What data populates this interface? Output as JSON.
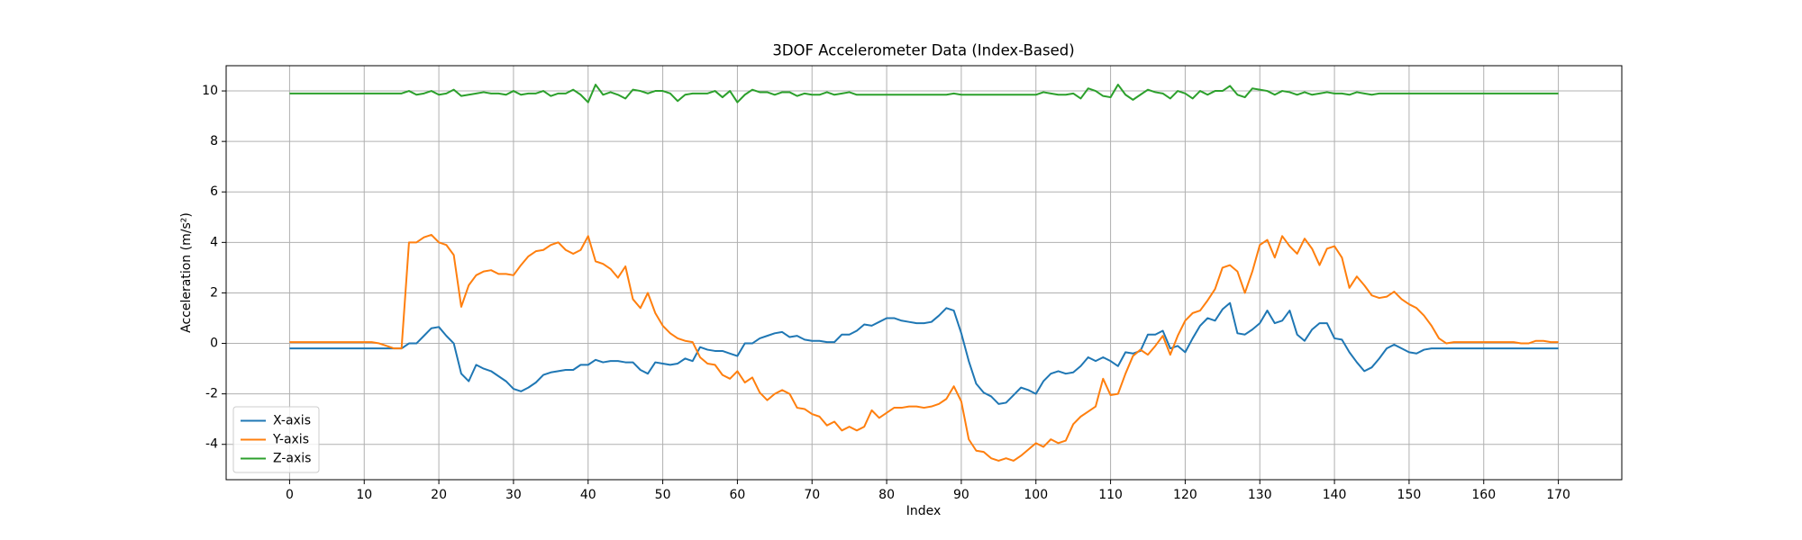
{
  "chart_data": {
    "type": "line",
    "title": "3DOF Accelerometer Data (Index-Based)",
    "x_label": "Index",
    "y_label": "Acceleration (m/s²)",
    "x": [
      0,
      1,
      2,
      3,
      4,
      5,
      6,
      7,
      8,
      9,
      10,
      11,
      12,
      13,
      14,
      15,
      16,
      17,
      18,
      19,
      20,
      21,
      22,
      23,
      24,
      25,
      26,
      27,
      28,
      29,
      30,
      31,
      32,
      33,
      34,
      35,
      36,
      37,
      38,
      39,
      40,
      41,
      42,
      43,
      44,
      45,
      46,
      47,
      48,
      49,
      50,
      51,
      52,
      53,
      54,
      55,
      56,
      57,
      58,
      59,
      60,
      61,
      62,
      63,
      64,
      65,
      66,
      67,
      68,
      69,
      70,
      71,
      72,
      73,
      74,
      75,
      76,
      77,
      78,
      79,
      80,
      81,
      82,
      83,
      84,
      85,
      86,
      87,
      88,
      89,
      90,
      91,
      92,
      93,
      94,
      95,
      96,
      97,
      98,
      99,
      100,
      101,
      102,
      103,
      104,
      105,
      106,
      107,
      108,
      109,
      110,
      111,
      112,
      113,
      114,
      115,
      116,
      117,
      118,
      119,
      120,
      121,
      122,
      123,
      124,
      125,
      126,
      127,
      128,
      129,
      130,
      131,
      132,
      133,
      134,
      135,
      136,
      137,
      138,
      139,
      140,
      141,
      142,
      143,
      144,
      145,
      146,
      147,
      148,
      149,
      150,
      151,
      152,
      153,
      154,
      155,
      156,
      157,
      158,
      159,
      160,
      161,
      162,
      163,
      164,
      165,
      166,
      167,
      168,
      169,
      170
    ],
    "series": [
      {
        "name": "X-axis",
        "color": "#1f77b4",
        "values": [
          -0.2,
          -0.2,
          -0.2,
          -0.2,
          -0.2,
          -0.2,
          -0.2,
          -0.2,
          -0.2,
          -0.2,
          -0.2,
          -0.2,
          -0.2,
          -0.2,
          -0.2,
          -0.2,
          0.0,
          0.0,
          0.3,
          0.6,
          0.65,
          0.3,
          0.0,
          -1.2,
          -1.5,
          -0.85,
          -1.0,
          -1.1,
          -1.3,
          -1.5,
          -1.8,
          -1.9,
          -1.75,
          -1.55,
          -1.25,
          -1.15,
          -1.1,
          -1.05,
          -1.05,
          -0.85,
          -0.85,
          -0.65,
          -0.75,
          -0.7,
          -0.7,
          -0.75,
          -0.75,
          -1.05,
          -1.2,
          -0.75,
          -0.8,
          -0.85,
          -0.8,
          -0.6,
          -0.7,
          -0.15,
          -0.25,
          -0.3,
          -0.3,
          -0.4,
          -0.5,
          0.0,
          0.0,
          0.2,
          0.3,
          0.4,
          0.45,
          0.25,
          0.3,
          0.15,
          0.1,
          0.1,
          0.05,
          0.05,
          0.35,
          0.35,
          0.5,
          0.75,
          0.7,
          0.85,
          1.0,
          1.0,
          0.9,
          0.85,
          0.8,
          0.8,
          0.85,
          1.1,
          1.4,
          1.3,
          0.4,
          -0.7,
          -1.6,
          -1.95,
          -2.1,
          -2.4,
          -2.35,
          -2.05,
          -1.75,
          -1.85,
          -2.0,
          -1.5,
          -1.2,
          -1.1,
          -1.2,
          -1.15,
          -0.9,
          -0.55,
          -0.7,
          -0.55,
          -0.7,
          -0.9,
          -0.35,
          -0.4,
          -0.3,
          0.35,
          0.35,
          0.5,
          -0.2,
          -0.1,
          -0.35,
          0.2,
          0.7,
          1.0,
          0.9,
          1.35,
          1.6,
          0.4,
          0.35,
          0.55,
          0.8,
          1.3,
          0.8,
          0.9,
          1.3,
          0.35,
          0.1,
          0.55,
          0.8,
          0.8,
          0.2,
          0.15,
          -0.35,
          -0.75,
          -1.1,
          -0.95,
          -0.6,
          -0.2,
          -0.05,
          -0.2,
          -0.35,
          -0.4,
          -0.25,
          -0.2,
          -0.2,
          -0.2,
          -0.2,
          -0.2,
          -0.2,
          -0.2,
          -0.2,
          -0.2,
          -0.2,
          -0.2,
          -0.2,
          -0.2,
          -0.2,
          -0.2,
          -0.2,
          -0.2,
          -0.2
        ]
      },
      {
        "name": "Y-axis",
        "color": "#ff7f0e",
        "values": [
          0.05,
          0.05,
          0.05,
          0.05,
          0.05,
          0.05,
          0.05,
          0.05,
          0.05,
          0.05,
          0.05,
          0.05,
          0.0,
          -0.1,
          -0.2,
          -0.2,
          4.0,
          4.0,
          4.2,
          4.3,
          4.0,
          3.9,
          3.5,
          1.45,
          2.3,
          2.7,
          2.85,
          2.9,
          2.75,
          2.75,
          2.7,
          3.1,
          3.45,
          3.65,
          3.7,
          3.9,
          4.0,
          3.7,
          3.55,
          3.7,
          4.25,
          3.25,
          3.15,
          2.95,
          2.6,
          3.05,
          1.75,
          1.4,
          2.0,
          1.2,
          0.7,
          0.4,
          0.2,
          0.1,
          0.05,
          -0.55,
          -0.8,
          -0.85,
          -1.25,
          -1.4,
          -1.1,
          -1.55,
          -1.35,
          -1.95,
          -2.25,
          -2.0,
          -1.85,
          -2.0,
          -2.55,
          -2.6,
          -2.8,
          -2.9,
          -3.25,
          -3.1,
          -3.45,
          -3.3,
          -3.45,
          -3.3,
          -2.65,
          -2.95,
          -2.75,
          -2.55,
          -2.55,
          -2.5,
          -2.5,
          -2.55,
          -2.5,
          -2.4,
          -2.2,
          -1.7,
          -2.3,
          -3.8,
          -4.25,
          -4.3,
          -4.55,
          -4.65,
          -4.55,
          -4.65,
          -4.45,
          -4.2,
          -3.95,
          -4.1,
          -3.8,
          -3.95,
          -3.85,
          -3.2,
          -2.9,
          -2.7,
          -2.5,
          -1.4,
          -2.05,
          -2.0,
          -1.2,
          -0.5,
          -0.25,
          -0.45,
          -0.1,
          0.3,
          -0.45,
          0.3,
          0.9,
          1.2,
          1.3,
          1.7,
          2.15,
          3.0,
          3.1,
          2.85,
          2.0,
          2.85,
          3.9,
          4.1,
          3.4,
          4.25,
          3.85,
          3.55,
          4.15,
          3.75,
          3.1,
          3.75,
          3.85,
          3.4,
          2.2,
          2.65,
          2.3,
          1.9,
          1.8,
          1.85,
          2.05,
          1.75,
          1.55,
          1.4,
          1.1,
          0.7,
          0.2,
          0.0,
          0.05,
          0.05,
          0.05,
          0.05,
          0.05,
          0.05,
          0.05,
          0.05,
          0.05,
          0.0,
          0.0,
          0.1,
          0.1,
          0.05,
          0.05
        ]
      },
      {
        "name": "Z-axis",
        "color": "#2ca02c",
        "values": [
          9.9,
          9.9,
          9.9,
          9.9,
          9.9,
          9.9,
          9.9,
          9.9,
          9.9,
          9.9,
          9.9,
          9.9,
          9.9,
          9.9,
          9.9,
          9.9,
          10.0,
          9.85,
          9.9,
          10.0,
          9.85,
          9.9,
          10.05,
          9.8,
          9.85,
          9.9,
          9.95,
          9.9,
          9.9,
          9.85,
          10.0,
          9.85,
          9.9,
          9.9,
          10.0,
          9.8,
          9.9,
          9.9,
          10.05,
          9.85,
          9.55,
          10.25,
          9.85,
          9.95,
          9.85,
          9.7,
          10.05,
          10.0,
          9.9,
          10.0,
          10.0,
          9.9,
          9.6,
          9.85,
          9.9,
          9.9,
          9.9,
          10.0,
          9.75,
          10.0,
          9.55,
          9.85,
          10.05,
          9.95,
          9.95,
          9.85,
          9.95,
          9.95,
          9.8,
          9.9,
          9.85,
          9.85,
          9.95,
          9.85,
          9.9,
          9.95,
          9.85,
          9.85,
          9.85,
          9.85,
          9.85,
          9.85,
          9.85,
          9.85,
          9.85,
          9.85,
          9.85,
          9.85,
          9.85,
          9.9,
          9.85,
          9.85,
          9.85,
          9.85,
          9.85,
          9.85,
          9.85,
          9.85,
          9.85,
          9.85,
          9.85,
          9.95,
          9.9,
          9.85,
          9.85,
          9.9,
          9.7,
          10.1,
          10.0,
          9.8,
          9.75,
          10.25,
          9.85,
          9.65,
          9.85,
          10.05,
          9.95,
          9.9,
          9.7,
          10.0,
          9.9,
          9.7,
          10.0,
          9.85,
          10.0,
          10.0,
          10.2,
          9.85,
          9.75,
          10.1,
          10.05,
          10.0,
          9.85,
          10.0,
          9.95,
          9.85,
          9.95,
          9.85,
          9.9,
          9.95,
          9.9,
          9.9,
          9.85,
          9.95,
          9.9,
          9.85,
          9.9,
          9.9,
          9.9,
          9.9,
          9.9,
          9.9,
          9.9,
          9.9,
          9.9,
          9.9,
          9.9,
          9.9,
          9.9,
          9.9,
          9.9,
          9.9,
          9.9,
          9.9,
          9.9,
          9.9,
          9.9,
          9.9,
          9.9,
          9.9,
          9.9
        ]
      }
    ],
    "xlim": [
      -8.5,
      178.5
    ],
    "xticks": [
      0,
      10,
      20,
      30,
      40,
      50,
      60,
      70,
      80,
      90,
      100,
      110,
      120,
      130,
      140,
      150,
      160,
      170
    ],
    "ylim": [
      -5.4,
      11.0
    ],
    "yticks": [
      -4,
      -2,
      0,
      2,
      4,
      6,
      8,
      10
    ],
    "grid": true,
    "legend": "lower left"
  }
}
